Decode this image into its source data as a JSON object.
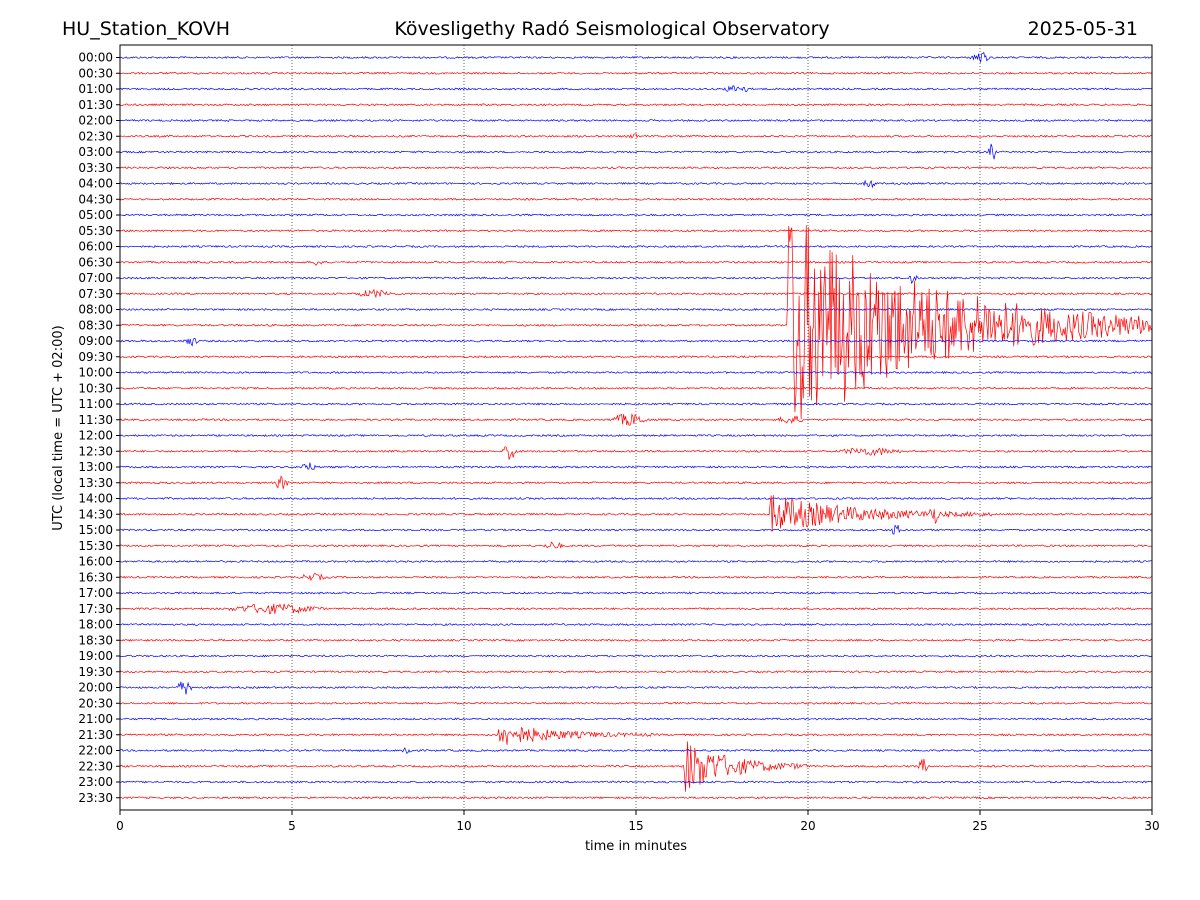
{
  "header": {
    "station": "HU_Station_KOVH",
    "observatory": "Kövesligethy Radó Seismological Observatory",
    "date": "2025-05-31"
  },
  "chart_data": {
    "type": "line",
    "title": "Kövesligethy Radó Seismological Observatory",
    "xlabel": "time in minutes",
    "ylabel": "UTC (local time = UTC + 02:00)",
    "xlim": [
      0,
      30
    ],
    "x_ticks": [
      "0",
      "5",
      "10",
      "15",
      "20",
      "25",
      "30"
    ],
    "x_tick_values": [
      0,
      5,
      10,
      15,
      20,
      25,
      30
    ],
    "grid": "vertical dotted lines at 5-minute intervals",
    "row_colors": [
      "#0000ff",
      "#ff0000"
    ],
    "rows": [
      "00:00",
      "00:30",
      "01:00",
      "01:30",
      "02:00",
      "02:30",
      "03:00",
      "03:30",
      "04:00",
      "04:30",
      "05:00",
      "05:30",
      "06:00",
      "06:30",
      "07:00",
      "07:30",
      "08:00",
      "08:30",
      "09:00",
      "09:30",
      "10:00",
      "10:30",
      "11:00",
      "11:30",
      "12:00",
      "12:30",
      "13:00",
      "13:30",
      "14:00",
      "14:30",
      "15:00",
      "15:30",
      "16:00",
      "16:30",
      "17:00",
      "17:30",
      "18:00",
      "18:30",
      "19:00",
      "19:30",
      "20:00",
      "20:30",
      "21:00",
      "21:30",
      "22:00",
      "22:30",
      "23:00",
      "23:30"
    ],
    "events": [
      {
        "row": 0,
        "start_min": 24.7,
        "duration_min": 0.6,
        "amp": 0.25
      },
      {
        "row": 2,
        "start_min": 17.5,
        "duration_min": 0.9,
        "amp": 0.15
      },
      {
        "row": 5,
        "start_min": 14.8,
        "duration_min": 0.3,
        "amp": 0.15
      },
      {
        "row": 6,
        "start_min": 25.2,
        "duration_min": 0.3,
        "amp": 0.5
      },
      {
        "row": 8,
        "start_min": 21.6,
        "duration_min": 0.4,
        "amp": 0.2
      },
      {
        "row": 13,
        "start_min": 5.6,
        "duration_min": 0.3,
        "amp": 0.18
      },
      {
        "row": 14,
        "start_min": 22.9,
        "duration_min": 0.3,
        "amp": 0.25
      },
      {
        "row": 15,
        "start_min": 6.8,
        "duration_min": 1.2,
        "amp": 0.15
      },
      {
        "row": 17,
        "start_min": 19.4,
        "duration_min": 12.0,
        "amp": 5.2
      },
      {
        "row": 18,
        "start_min": 1.8,
        "duration_min": 0.5,
        "amp": 0.18
      },
      {
        "row": 23,
        "start_min": 14.2,
        "duration_min": 1.2,
        "amp": 0.25
      },
      {
        "row": 23,
        "start_min": 19.1,
        "duration_min": 0.8,
        "amp": 0.18
      },
      {
        "row": 25,
        "start_min": 11.1,
        "duration_min": 0.5,
        "amp": 0.35
      },
      {
        "row": 25,
        "start_min": 20.8,
        "duration_min": 2.0,
        "amp": 0.15
      },
      {
        "row": 26,
        "start_min": 5.2,
        "duration_min": 0.5,
        "amp": 0.2
      },
      {
        "row": 27,
        "start_min": 4.5,
        "duration_min": 0.4,
        "amp": 0.3
      },
      {
        "row": 29,
        "start_min": 18.9,
        "duration_min": 6.5,
        "amp": 0.9
      },
      {
        "row": 29,
        "start_min": 23.5,
        "duration_min": 0.3,
        "amp": 0.35
      },
      {
        "row": 30,
        "start_min": 22.4,
        "duration_min": 0.3,
        "amp": 0.25
      },
      {
        "row": 31,
        "start_min": 12.3,
        "duration_min": 0.6,
        "amp": 0.15
      },
      {
        "row": 33,
        "start_min": 5.2,
        "duration_min": 0.8,
        "amp": 0.15
      },
      {
        "row": 35,
        "start_min": 3.0,
        "duration_min": 3.0,
        "amp": 0.2
      },
      {
        "row": 40,
        "start_min": 1.6,
        "duration_min": 0.6,
        "amp": 0.3
      },
      {
        "row": 43,
        "start_min": 11.0,
        "duration_min": 4.5,
        "amp": 0.55
      },
      {
        "row": 44,
        "start_min": 8.2,
        "duration_min": 0.3,
        "amp": 0.25
      },
      {
        "row": 45,
        "start_min": 16.4,
        "duration_min": 3.6,
        "amp": 1.3
      },
      {
        "row": 45,
        "start_min": 23.2,
        "duration_min": 0.3,
        "amp": 0.35
      }
    ]
  }
}
